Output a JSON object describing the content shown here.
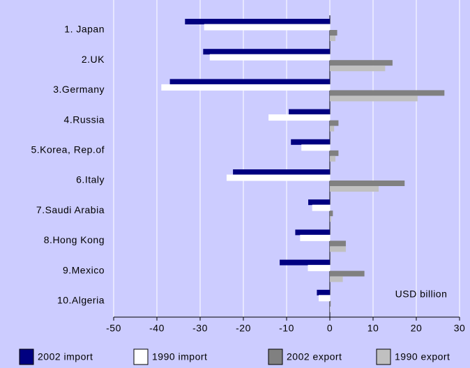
{
  "chart_data": {
    "type": "bar",
    "orientation": "horizontal",
    "categories": [
      "1. Japan",
      "2.UK",
      "3.Germany",
      "4.Russia",
      "5.Korea, Rep.of",
      "6.Italy",
      "7.Saudi Arabia",
      "8.Hong Kong",
      "9.Mexico",
      "10.Algeria"
    ],
    "series": [
      {
        "name": "2002 import",
        "color": "#000080",
        "values": [
          -33.5,
          -29.3,
          -37,
          -9.5,
          -9,
          -22.4,
          -5,
          -8,
          -11.6,
          -3
        ]
      },
      {
        "name": "1990 import",
        "color": "#ffffff",
        "values": [
          -29,
          -27.7,
          -38.9,
          -14.1,
          -6.5,
          -23.8,
          -4,
          -6.8,
          -5,
          -2.5
        ]
      },
      {
        "name": "2002 export",
        "color": "#808080",
        "values": [
          1.7,
          14.5,
          26.5,
          2,
          2,
          17.3,
          0.7,
          3.7,
          8,
          0.2
        ]
      },
      {
        "name": "1990 export",
        "color": "#c0c0c0",
        "values": [
          1.3,
          12.8,
          20.3,
          1,
          1.3,
          11.3,
          0.3,
          3.7,
          3,
          0.1
        ]
      }
    ],
    "xlim": [
      -50,
      30
    ],
    "xticks": [
      -50,
      -40,
      -30,
      -20,
      -10,
      0,
      10,
      20,
      30
    ],
    "grid": true,
    "annotation": "USD billion",
    "legend": "bottom"
  }
}
